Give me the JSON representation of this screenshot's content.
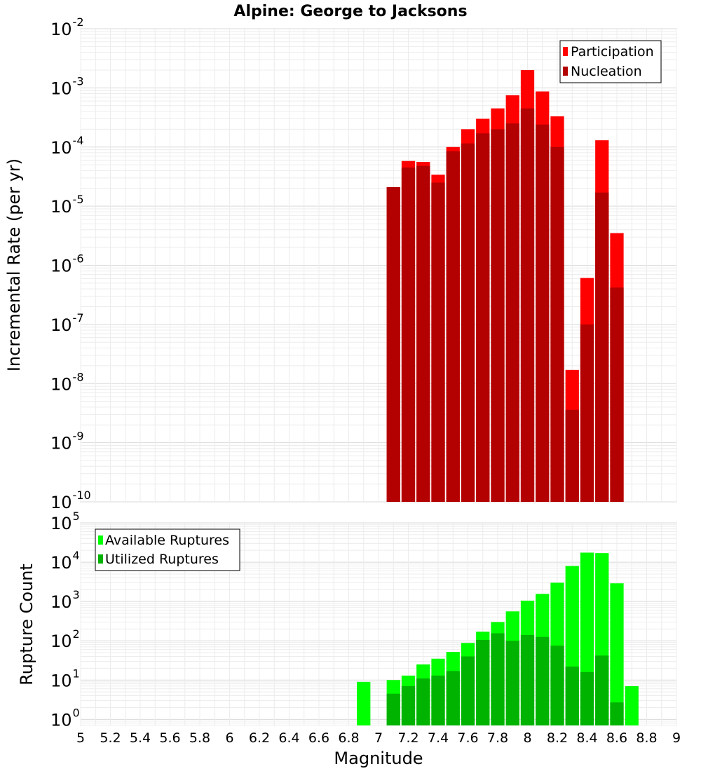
{
  "title": "Alpine: George to Jacksons",
  "xlabel": "Magnitude",
  "xticks": [
    "5",
    "5.2",
    "5.4",
    "5.6",
    "5.8",
    "6",
    "6.2",
    "6.4",
    "6.6",
    "6.8",
    "7",
    "7.2",
    "7.4",
    "7.6",
    "7.8",
    "8",
    "8.2",
    "8.4",
    "8.6",
    "8.8",
    "9"
  ],
  "colors": {
    "participation": "#ff0000",
    "nucleation": "#b30000",
    "available": "#00ff00",
    "utilized": "#00b300"
  },
  "chart_data": [
    {
      "type": "bar",
      "title": "Alpine: George to Jacksons",
      "xlabel": "Magnitude",
      "ylabel": "Incremental Rate (per yr)",
      "yscale": "log",
      "xlim": [
        5,
        9
      ],
      "ylim": [
        1e-10,
        0.01
      ],
      "ytick_exponents": [
        -10,
        -9,
        -8,
        -7,
        -6,
        -5,
        -4,
        -3,
        -2
      ],
      "legend_position": "top-right",
      "x": [
        7.1,
        7.2,
        7.3,
        7.4,
        7.5,
        7.6,
        7.7,
        7.8,
        7.9,
        8.0,
        8.1,
        8.2,
        8.3,
        8.4,
        8.5,
        8.6
      ],
      "series": [
        {
          "name": "Participation",
          "values": [
            2.1e-05,
            5.8e-05,
            5.6e-05,
            3.4e-05,
            0.0001,
            0.0002,
            0.0003,
            0.00045,
            0.00075,
            0.002,
            0.00087,
            0.00033,
            1.7e-08,
            6.1e-07,
            0.00013,
            3.5e-06
          ]
        },
        {
          "name": "Nucleation",
          "values": [
            2.1e-05,
            4.5e-05,
            4.8e-05,
            2.5e-05,
            8.5e-05,
            0.000115,
            0.00017,
            0.0002,
            0.00025,
            0.00045,
            0.00024,
            0.0001,
            3.6e-09,
            1e-07,
            1.7e-05,
            4.2e-07
          ]
        }
      ]
    },
    {
      "type": "bar",
      "xlabel": "Magnitude",
      "ylabel": "Rupture Count",
      "yscale": "log",
      "xlim": [
        5,
        9
      ],
      "ylim": [
        0.7,
        100000.0
      ],
      "ytick_exponents": [
        0,
        1,
        2,
        3,
        4,
        5
      ],
      "legend_position": "top-left",
      "x": [
        6.9,
        7.1,
        7.2,
        7.3,
        7.4,
        7.5,
        7.6,
        7.7,
        7.8,
        7.9,
        8.0,
        8.1,
        8.2,
        8.3,
        8.4,
        8.5,
        8.6,
        8.7
      ],
      "series": [
        {
          "name": "Available Ruptures",
          "values": [
            9,
            10,
            13,
            25,
            35,
            52,
            88,
            170,
            300,
            560,
            1050,
            1560,
            3000,
            8000,
            17500,
            17000,
            2900,
            7
          ]
        },
        {
          "name": "Utilized Ruptures",
          "values": [
            null,
            4.5,
            7,
            11,
            13,
            17,
            40,
            105,
            155,
            100,
            140,
            125,
            75,
            22,
            16,
            42,
            2.7,
            null
          ]
        }
      ]
    }
  ]
}
